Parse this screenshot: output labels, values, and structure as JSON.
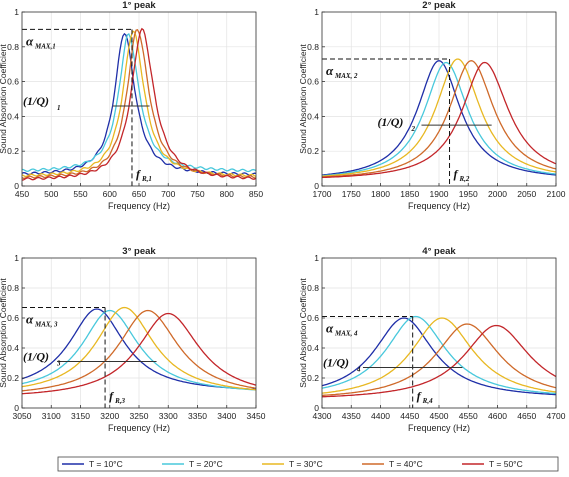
{
  "colors": {
    "T = 10°C": "#1f2fa8",
    "T = 20°C": "#48c8dc",
    "T = 30°C": "#e8b822",
    "T = 40°C": "#cf6a2a",
    "T = 50°C": "#c3262a"
  },
  "legend": {
    "placement": "bottom",
    "entries": [
      "T = 10°C",
      "T = 20°C",
      "T = 30°C",
      "T = 40°C",
      "T = 50°C"
    ]
  },
  "chart_data": [
    {
      "type": "line",
      "title": "1° peak",
      "xlabel": "Frequency (Hz)",
      "ylabel": "Sound Absorption Coefficient",
      "xlim": [
        450,
        850
      ],
      "ylim": [
        0,
        1
      ],
      "xticks": [
        "450",
        "500",
        "550",
        "600",
        "650",
        "700",
        "750",
        "800",
        "850"
      ],
      "yticks": [
        "0",
        "0.2",
        "0.4",
        "0.6",
        "0.8",
        "1"
      ],
      "grid": true,
      "series": [
        {
          "name": "T = 10°C",
          "peak_x": 625,
          "peak_y": 0.88,
          "hw_left": 20,
          "hw_right": 22,
          "base": 0.06
        },
        {
          "name": "T = 20°C",
          "peak_x": 632,
          "peak_y": 0.87,
          "hw_left": 20,
          "hw_right": 22,
          "base": 0.08
        },
        {
          "name": "T = 30°C",
          "peak_x": 640,
          "peak_y": 0.89,
          "hw_left": 21,
          "hw_right": 23,
          "base": 0.05
        },
        {
          "name": "T = 40°C",
          "peak_x": 647,
          "peak_y": 0.9,
          "hw_left": 21,
          "hw_right": 24,
          "base": 0.04
        },
        {
          "name": "T = 50°C",
          "peak_x": 655,
          "peak_y": 0.9,
          "hw_left": 22,
          "hw_right": 25,
          "base": 0.03
        }
      ],
      "annotations": {
        "alpha_label": "α",
        "alpha_sub": "MAX,1",
        "q_label": "(1/Q)",
        "q_sub": "1",
        "f_label": "f",
        "f_sub": "R,1",
        "alpha_max": 0.9,
        "f_r": 638,
        "q_y": 0.46,
        "q_x": [
          605,
          668
        ]
      }
    },
    {
      "type": "line",
      "title": "2° peak",
      "xlabel": "Frequency (Hz)",
      "ylabel": "Sound Absorption Coefficient",
      "xlim": [
        1700,
        2100
      ],
      "ylim": [
        0,
        1
      ],
      "xticks": [
        "1700",
        "1750",
        "1800",
        "1850",
        "1900",
        "1950",
        "2000",
        "2050",
        "2100"
      ],
      "yticks": [
        "0",
        "0.2",
        "0.4",
        "0.6",
        "0.8",
        "1"
      ],
      "grid": true,
      "series": [
        {
          "name": "T = 10°C",
          "peak_x": 1900,
          "peak_y": 0.72,
          "hw_left": 45,
          "hw_right": 45,
          "base": 0.03
        },
        {
          "name": "T = 20°C",
          "peak_x": 1912,
          "peak_y": 0.71,
          "hw_left": 45,
          "hw_right": 46,
          "base": 0.03
        },
        {
          "name": "T = 30°C",
          "peak_x": 1932,
          "peak_y": 0.73,
          "hw_left": 46,
          "hw_right": 47,
          "base": 0.03
        },
        {
          "name": "T = 40°C",
          "peak_x": 1955,
          "peak_y": 0.72,
          "hw_left": 46,
          "hw_right": 48,
          "base": 0.03
        },
        {
          "name": "T = 50°C",
          "peak_x": 1978,
          "peak_y": 0.71,
          "hw_left": 47,
          "hw_right": 50,
          "base": 0.03
        }
      ],
      "annotations": {
        "alpha_label": "α",
        "alpha_sub": "MAX, 2",
        "q_label": "(1/Q)",
        "q_sub": "2",
        "f_label": "f",
        "f_sub": "R,2",
        "alpha_max": 0.73,
        "f_r": 1918,
        "q_y": 0.35,
        "q_x": [
          1870,
          1990
        ]
      }
    },
    {
      "type": "line",
      "title": "3° peak",
      "xlabel": "Frequency (Hz)",
      "ylabel": "Sound Absorption Coefficient",
      "xlim": [
        3050,
        3450
      ],
      "ylim": [
        0,
        1
      ],
      "xticks": [
        "3050",
        "3100",
        "3150",
        "3200",
        "3250",
        "3300",
        "3350",
        "3400",
        "3450"
      ],
      "yticks": [
        "0",
        "0.2",
        "0.4",
        "0.6",
        "0.8",
        "1"
      ],
      "grid": true,
      "series": [
        {
          "name": "T = 10°C",
          "peak_x": 3178,
          "peak_y": 0.66,
          "hw_left": 58,
          "hw_right": 58,
          "base": 0.1
        },
        {
          "name": "T = 20°C",
          "peak_x": 3200,
          "peak_y": 0.65,
          "hw_left": 58,
          "hw_right": 60,
          "base": 0.09
        },
        {
          "name": "T = 30°C",
          "peak_x": 3225,
          "peak_y": 0.67,
          "hw_left": 60,
          "hw_right": 62,
          "base": 0.08
        },
        {
          "name": "T = 40°C",
          "peak_x": 3265,
          "peak_y": 0.65,
          "hw_left": 62,
          "hw_right": 64,
          "base": 0.07
        },
        {
          "name": "T = 50°C",
          "peak_x": 3300,
          "peak_y": 0.63,
          "hw_left": 64,
          "hw_right": 66,
          "base": 0.06
        }
      ],
      "annotations": {
        "alpha_label": "α",
        "alpha_sub": "MAX, 3",
        "q_label": "(1/Q)",
        "q_sub": "3",
        "f_label": "f",
        "f_sub": "R,3",
        "alpha_max": 0.67,
        "f_r": 3192,
        "q_y": 0.31,
        "q_x": [
          3110,
          3280
        ]
      }
    },
    {
      "type": "line",
      "title": "4° peak",
      "xlabel": "Frequency (Hz)",
      "ylabel": "Sound Absorption Coefficient",
      "xlim": [
        4300,
        4700
      ],
      "ylim": [
        0,
        1
      ],
      "xticks": [
        "4300",
        "4350",
        "4400",
        "4450",
        "4500",
        "4550",
        "4600",
        "4650",
        "4700"
      ],
      "yticks": [
        "0",
        "0.2",
        "0.4",
        "0.6",
        "0.8",
        "1"
      ],
      "grid": true,
      "series": [
        {
          "name": "T = 10°C",
          "peak_x": 4440,
          "peak_y": 0.6,
          "hw_left": 62,
          "hw_right": 62,
          "base": 0.06
        },
        {
          "name": "T = 20°C",
          "peak_x": 4460,
          "peak_y": 0.61,
          "hw_left": 62,
          "hw_right": 64,
          "base": 0.06
        },
        {
          "name": "T = 30°C",
          "peak_x": 4505,
          "peak_y": 0.6,
          "hw_left": 64,
          "hw_right": 66,
          "base": 0.05
        },
        {
          "name": "T = 40°C",
          "peak_x": 4548,
          "peak_y": 0.56,
          "hw_left": 66,
          "hw_right": 68,
          "base": 0.05
        },
        {
          "name": "T = 50°C",
          "peak_x": 4598,
          "peak_y": 0.55,
          "hw_left": 68,
          "hw_right": 70,
          "base": 0.05
        }
      ],
      "annotations": {
        "alpha_label": "α",
        "alpha_sub": "MAX, 4",
        "q_label": "(1/Q)",
        "q_sub": "4",
        "f_label": "f",
        "f_sub": "R,4",
        "alpha_max": 0.61,
        "f_r": 4455,
        "q_y": 0.27,
        "q_x": [
          4370,
          4540
        ]
      }
    }
  ]
}
